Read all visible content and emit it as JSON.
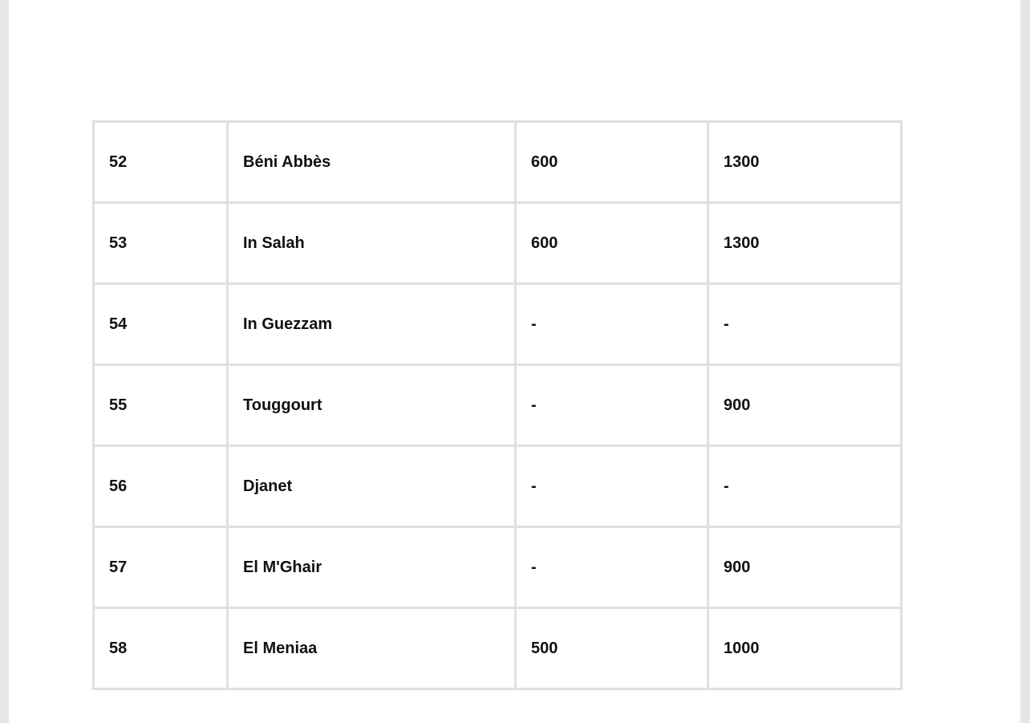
{
  "table": {
    "rows": [
      [
        "52",
        "Béni Abbès",
        "600",
        "1300"
      ],
      [
        "53",
        "In Salah",
        "600",
        "1300"
      ],
      [
        "54",
        "In Guezzam",
        "-",
        "-"
      ],
      [
        "55",
        "Touggourt",
        "-",
        "900"
      ],
      [
        "56",
        "Djanet",
        "-",
        "-"
      ],
      [
        "57",
        "El M'Ghair",
        "-",
        "900"
      ],
      [
        "58",
        "El Meniaa",
        "500",
        "1000"
      ]
    ]
  }
}
